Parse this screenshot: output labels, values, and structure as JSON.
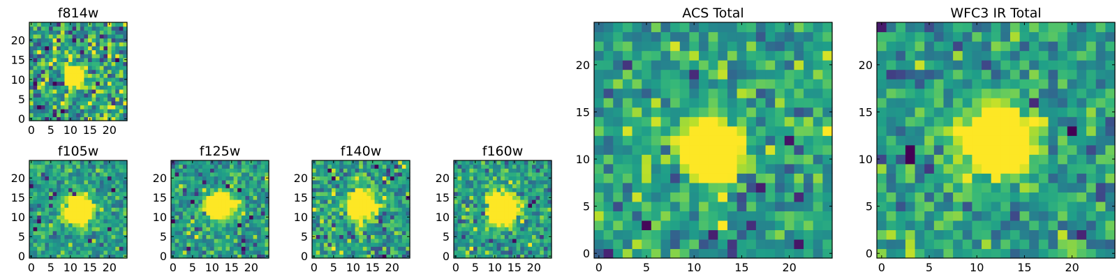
{
  "chart_data": [
    {
      "type": "heatmap",
      "title": "f814w",
      "xlim": [
        -0.5,
        24.5
      ],
      "ylim": [
        -0.5,
        24.5
      ],
      "xticks": [
        "0",
        "5",
        "10",
        "15",
        "20"
      ],
      "yticks": [
        "0",
        "5",
        "10",
        "15",
        "20"
      ],
      "source_center": [
        11,
        11
      ],
      "source_radius": 1.6,
      "noise": 0.75,
      "colormap": "viridis"
    },
    {
      "type": "heatmap",
      "title": "f105w",
      "xlim": [
        -0.5,
        24.5
      ],
      "ylim": [
        -0.5,
        24.5
      ],
      "xticks": [
        "0",
        "5",
        "10",
        "15",
        "20"
      ],
      "yticks": [
        "0",
        "5",
        "10",
        "15",
        "20"
      ],
      "source_center": [
        12,
        12
      ],
      "source_radius": 2.2,
      "noise": 0.45,
      "colormap": "viridis"
    },
    {
      "type": "heatmap",
      "title": "f125w",
      "xlim": [
        -0.5,
        24.5
      ],
      "ylim": [
        -0.5,
        24.5
      ],
      "xticks": [
        "0",
        "5",
        "10",
        "15",
        "20"
      ],
      "yticks": [
        "0",
        "5",
        "10",
        "15",
        "20"
      ],
      "source_center": [
        12,
        13
      ],
      "source_radius": 2.0,
      "noise": 0.5,
      "colormap": "viridis"
    },
    {
      "type": "heatmap",
      "title": "f140w",
      "xlim": [
        -0.5,
        24.5
      ],
      "ylim": [
        -0.5,
        24.5
      ],
      "xticks": [
        "0",
        "5",
        "10",
        "15",
        "20"
      ],
      "yticks": [
        "0",
        "5",
        "10",
        "15",
        "20"
      ],
      "source_center": [
        12,
        13
      ],
      "source_radius": 2.2,
      "noise": 0.6,
      "colormap": "viridis"
    },
    {
      "type": "heatmap",
      "title": "f160w",
      "xlim": [
        -0.5,
        24.5
      ],
      "ylim": [
        -0.5,
        24.5
      ],
      "xticks": [
        "0",
        "5",
        "10",
        "15",
        "20"
      ],
      "yticks": [
        "0",
        "5",
        "10",
        "15",
        "20"
      ],
      "source_center": [
        12,
        12
      ],
      "source_radius": 2.3,
      "noise": 0.55,
      "colormap": "viridis"
    },
    {
      "type": "heatmap",
      "title": "ACS Total",
      "xlim": [
        -0.5,
        24.5
      ],
      "ylim": [
        -0.5,
        24.5
      ],
      "xticks": [
        "0",
        "5",
        "10",
        "15",
        "20"
      ],
      "yticks": [
        "0",
        "5",
        "10",
        "15",
        "20"
      ],
      "source_center": [
        12,
        11
      ],
      "source_radius": 1.9,
      "noise": 0.55,
      "colormap": "viridis"
    },
    {
      "type": "heatmap",
      "title": "WFC3 IR Total",
      "xlim": [
        -0.5,
        24.5
      ],
      "ylim": [
        -0.5,
        24.5
      ],
      "xticks": [
        "0",
        "5",
        "10",
        "15",
        "20"
      ],
      "yticks": [
        "0",
        "5",
        "10",
        "15",
        "20"
      ],
      "source_center": [
        12,
        12
      ],
      "source_radius": 2.2,
      "noise": 0.55,
      "colormap": "viridis"
    }
  ]
}
